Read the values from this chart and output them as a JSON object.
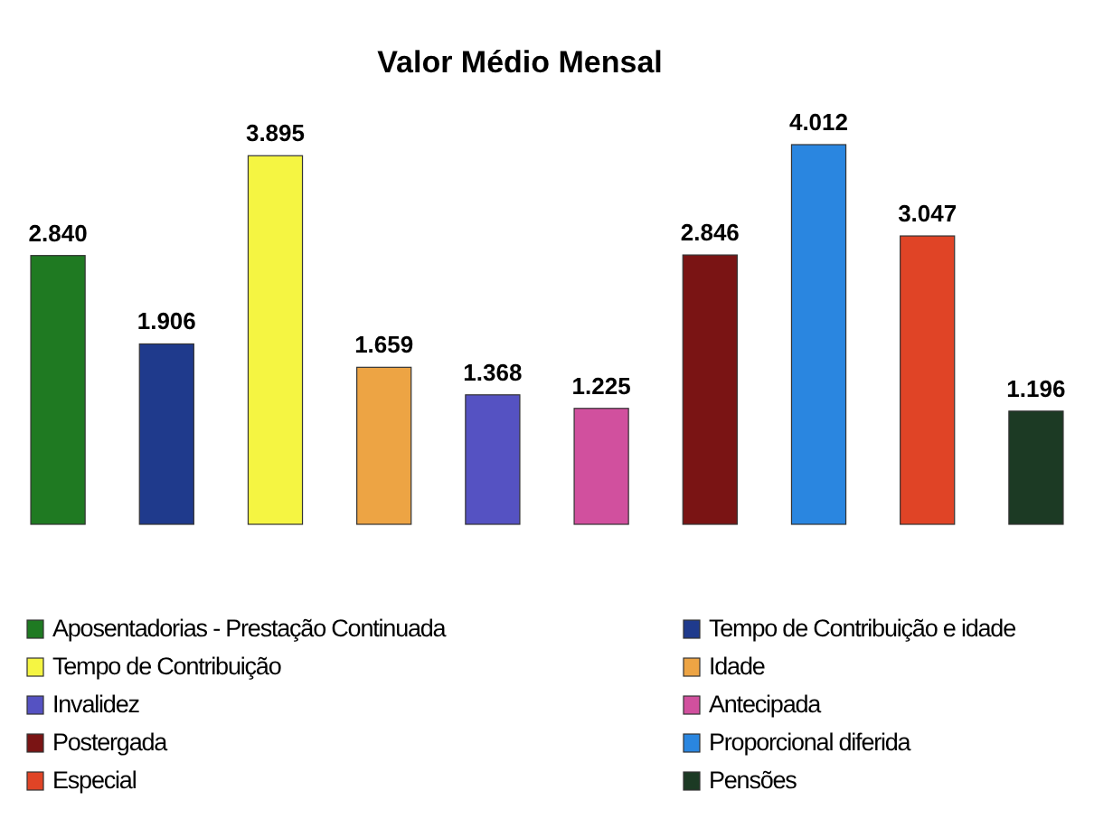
{
  "chart_data": {
    "type": "bar",
    "title": "Valor Médio Mensal",
    "stacked": true,
    "categories": [
      null,
      null,
      null,
      null,
      null,
      null,
      null,
      null,
      null,
      null
    ],
    "legend": "bottom",
    "series": [
      {
        "name": "Aposentadorias - Prestação Continuada",
        "color": "#1f7a22",
        "values": [
          2840,
          null,
          null,
          null,
          null,
          null,
          null,
          null,
          null,
          null
        ],
        "value_labels": [
          "2.840",
          null,
          null,
          null,
          null,
          null,
          null,
          null,
          null,
          null
        ]
      },
      {
        "name": "Tempo de Contribuição e idade",
        "color": "#1f3a8c",
        "values": [
          null,
          1906,
          null,
          null,
          null,
          null,
          null,
          null,
          null,
          null
        ],
        "value_labels": [
          null,
          "1.906",
          null,
          null,
          null,
          null,
          null,
          null,
          null,
          null
        ]
      },
      {
        "name": "Tempo de Contribuição",
        "color": "#f5f542",
        "values": [
          null,
          null,
          3895,
          null,
          null,
          null,
          null,
          null,
          null,
          null
        ],
        "value_labels": [
          null,
          null,
          "3.895",
          null,
          null,
          null,
          null,
          null,
          null,
          null
        ]
      },
      {
        "name": "Idade",
        "color": "#eda444",
        "values": [
          null,
          null,
          null,
          1659,
          null,
          null,
          null,
          null,
          null,
          null
        ],
        "value_labels": [
          null,
          null,
          null,
          "1.659",
          null,
          null,
          null,
          null,
          null,
          null
        ]
      },
      {
        "name": "Invalidez",
        "color": "#5552c2",
        "values": [
          null,
          null,
          null,
          null,
          1368,
          null,
          null,
          null,
          null,
          null
        ],
        "value_labels": [
          null,
          null,
          null,
          null,
          "1.368",
          null,
          null,
          null,
          null,
          null
        ]
      },
      {
        "name": "Antecipada",
        "color": "#d1509e",
        "values": [
          null,
          null,
          null,
          null,
          null,
          1225,
          null,
          null,
          null,
          null
        ],
        "value_labels": [
          null,
          null,
          null,
          null,
          null,
          "1.225",
          null,
          null,
          null,
          null
        ]
      },
      {
        "name": "Postergada",
        "color": "#7a1414",
        "values": [
          null,
          null,
          null,
          null,
          null,
          null,
          2846,
          null,
          null,
          null
        ],
        "value_labels": [
          null,
          null,
          null,
          null,
          null,
          null,
          "2.846",
          null,
          null,
          null
        ]
      },
      {
        "name": "Proporcional diferida",
        "color": "#2a86e0",
        "values": [
          null,
          null,
          null,
          null,
          null,
          null,
          null,
          4012,
          null,
          null
        ],
        "value_labels": [
          null,
          null,
          null,
          null,
          null,
          null,
          null,
          "4.012",
          null,
          null
        ]
      },
      {
        "name": "Especial",
        "color": "#e04426",
        "values": [
          null,
          null,
          null,
          null,
          null,
          null,
          null,
          null,
          3047,
          null
        ],
        "value_labels": [
          null,
          null,
          null,
          null,
          null,
          null,
          null,
          null,
          "3.047",
          null
        ]
      },
      {
        "name": "Pensões",
        "color": "#1c3a24",
        "values": [
          null,
          null,
          null,
          null,
          null,
          null,
          null,
          null,
          null,
          1196
        ],
        "value_labels": [
          null,
          null,
          null,
          null,
          null,
          null,
          null,
          null,
          null,
          "1.196"
        ]
      }
    ]
  }
}
